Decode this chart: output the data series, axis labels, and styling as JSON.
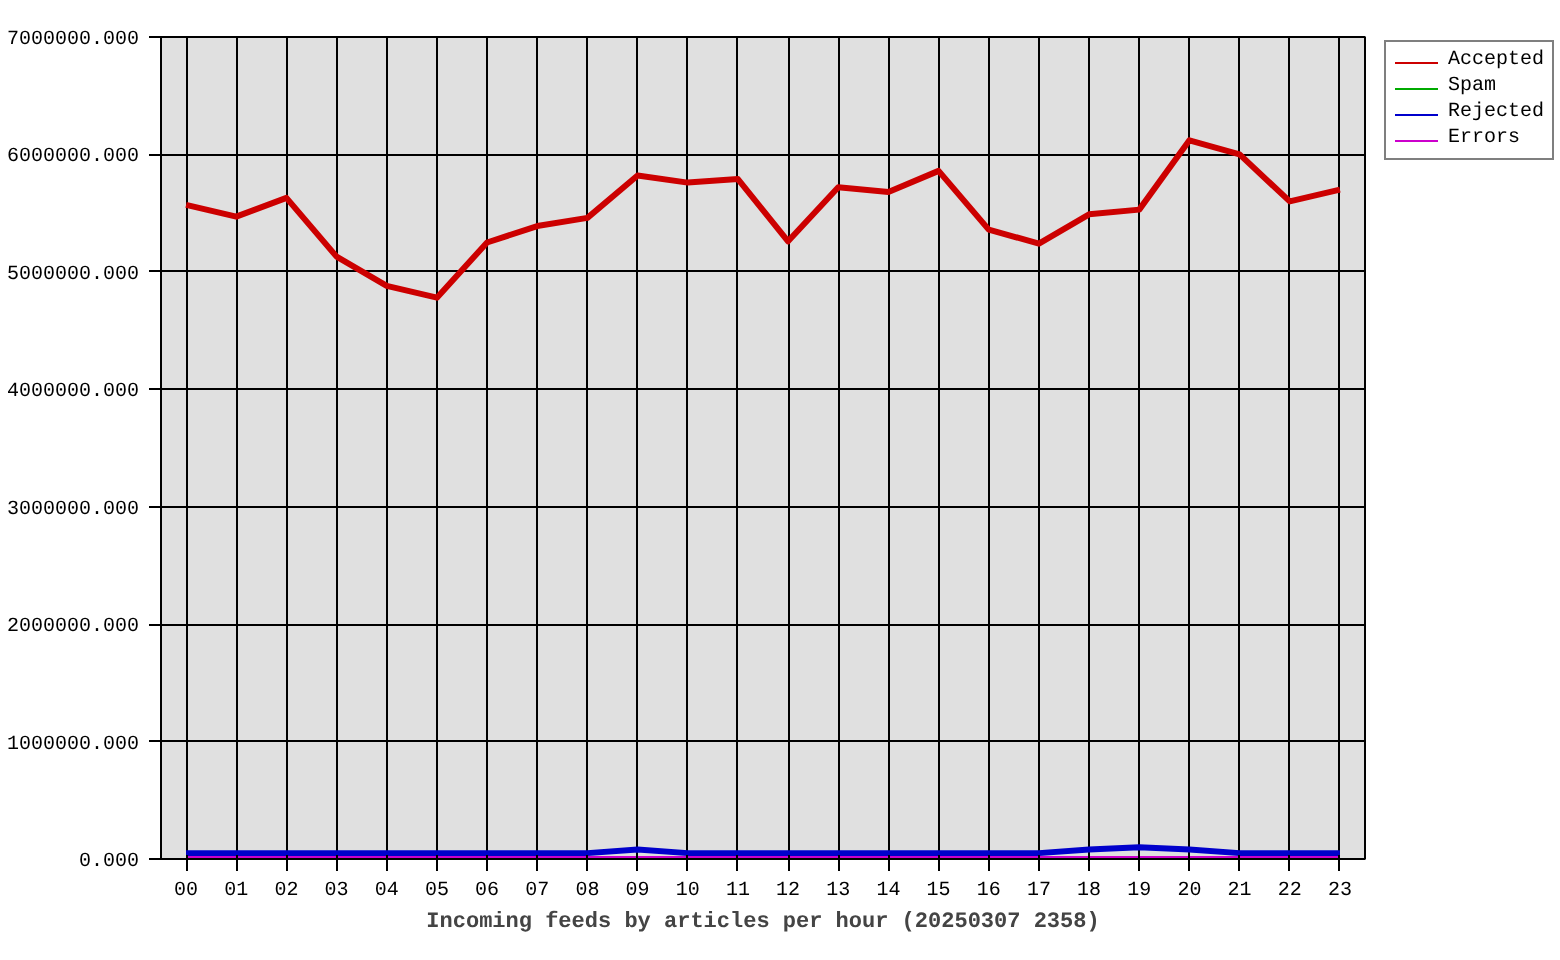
{
  "chart_data": {
    "type": "line",
    "xlabel": "Incoming feeds by articles per hour (20250307 2358)",
    "categories": [
      "00",
      "01",
      "02",
      "03",
      "04",
      "05",
      "06",
      "07",
      "08",
      "09",
      "10",
      "11",
      "12",
      "13",
      "14",
      "15",
      "16",
      "17",
      "18",
      "19",
      "20",
      "21",
      "22",
      "23"
    ],
    "series": [
      {
        "name": "Accepted",
        "color": "#cc0000",
        "values": [
          5570000,
          5470000,
          5630000,
          5130000,
          4880000,
          4780000,
          5250000,
          5390000,
          5460000,
          5820000,
          5760000,
          5790000,
          5260000,
          5720000,
          5680000,
          5860000,
          5360000,
          5240000,
          5490000,
          5530000,
          6120000,
          6000000,
          5600000,
          5700000
        ]
      },
      {
        "name": "Spam",
        "color": "#00aa00",
        "values": [
          null,
          null,
          null,
          null,
          null,
          null,
          null,
          null,
          null,
          null,
          null,
          null,
          null,
          null,
          null,
          null,
          null,
          null,
          null,
          null,
          null,
          null,
          null,
          null
        ]
      },
      {
        "name": "Rejected",
        "color": "#0000cc",
        "values": [
          50000,
          50000,
          50000,
          50000,
          50000,
          50000,
          50000,
          50000,
          50000,
          80000,
          50000,
          50000,
          50000,
          50000,
          50000,
          50000,
          50000,
          50000,
          80000,
          100000,
          80000,
          50000,
          50000,
          50000
        ]
      },
      {
        "name": "Errors",
        "color": "#cc00cc",
        "values": [
          0,
          0,
          0,
          0,
          0,
          0,
          0,
          0,
          0,
          0,
          0,
          0,
          0,
          0,
          0,
          0,
          0,
          0,
          0,
          0,
          0,
          0,
          0,
          0
        ]
      }
    ],
    "ylim": [
      0,
      7000000
    ],
    "yticks": [
      {
        "value": 0,
        "label": "0.000"
      },
      {
        "value": 1000000,
        "label": "1000000.000"
      },
      {
        "value": 2000000,
        "label": "2000000.000"
      },
      {
        "value": 3000000,
        "label": "3000000.000"
      },
      {
        "value": 4000000,
        "label": "4000000.000"
      },
      {
        "value": 5000000,
        "label": "5000000.000"
      },
      {
        "value": 6000000,
        "label": "6000000.000"
      },
      {
        "value": 7000000,
        "label": "7000000.000"
      }
    ],
    "grid": true,
    "legend": "top right"
  }
}
